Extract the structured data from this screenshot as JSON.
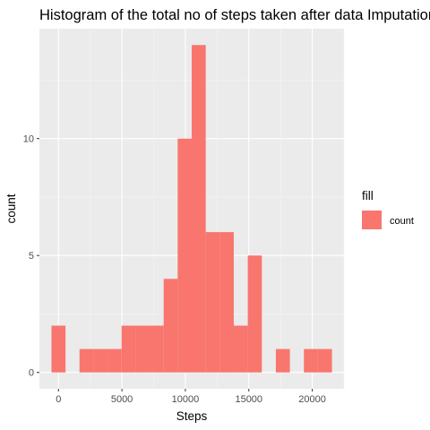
{
  "chart_data": {
    "type": "bar",
    "title": "Histogram of the total no of steps taken after data Imputation",
    "xlabel": "Steps",
    "ylabel": "count",
    "xlim": [
      -1500,
      22500
    ],
    "ylim": [
      -0.7,
      14.7
    ],
    "x_ticks": [
      0,
      5000,
      10000,
      15000,
      20000
    ],
    "x_tick_labels": [
      "0",
      "5000",
      "10000",
      "15000",
      "20000"
    ],
    "y_ticks": [
      0,
      5,
      10
    ],
    "y_tick_labels": [
      "0",
      "5",
      "10"
    ],
    "grid": true,
    "bin_width": 1105,
    "bins": [
      {
        "x0": -550,
        "x1": 555,
        "count": 2
      },
      {
        "x0": 555,
        "x1": 1660,
        "count": 0
      },
      {
        "x0": 1660,
        "x1": 2765,
        "count": 1
      },
      {
        "x0": 2765,
        "x1": 3870,
        "count": 1
      },
      {
        "x0": 3870,
        "x1": 4975,
        "count": 1
      },
      {
        "x0": 4975,
        "x1": 6080,
        "count": 2
      },
      {
        "x0": 6080,
        "x1": 7185,
        "count": 2
      },
      {
        "x0": 7185,
        "x1": 8290,
        "count": 2
      },
      {
        "x0": 8290,
        "x1": 9395,
        "count": 4
      },
      {
        "x0": 9395,
        "x1": 10500,
        "count": 10
      },
      {
        "x0": 10500,
        "x1": 11605,
        "count": 14
      },
      {
        "x0": 11605,
        "x1": 12710,
        "count": 6
      },
      {
        "x0": 12710,
        "x1": 13815,
        "count": 6
      },
      {
        "x0": 13815,
        "x1": 14920,
        "count": 2
      },
      {
        "x0": 14920,
        "x1": 16025,
        "count": 5
      },
      {
        "x0": 16025,
        "x1": 17130,
        "count": 0
      },
      {
        "x0": 17130,
        "x1": 18235,
        "count": 1
      },
      {
        "x0": 18235,
        "x1": 19340,
        "count": 0
      },
      {
        "x0": 19340,
        "x1": 20445,
        "count": 1
      },
      {
        "x0": 20445,
        "x1": 21550,
        "count": 1
      }
    ],
    "fill_color": "#F8766D",
    "panel_color": "#EBEBEB",
    "grid_major_color": "#FFFFFF",
    "legend": {
      "title": "fill",
      "entries": [
        {
          "label": "count",
          "color": "#F8766D"
        }
      ],
      "position": "right"
    }
  }
}
